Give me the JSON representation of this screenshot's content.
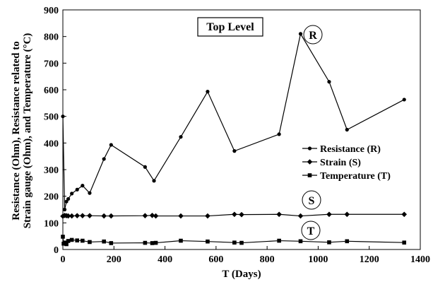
{
  "chart_data": {
    "type": "line",
    "xlabel": "T (Days)",
    "ylabel_lines": [
      "Resistance (Ohm), Resistance related to",
      "Strain gauge (Ohm), and Temperature  (°C)"
    ],
    "xlim": [
      0,
      1400
    ],
    "ylim": [
      0,
      900
    ],
    "xticks": [
      0,
      200,
      400,
      600,
      800,
      1000,
      1200,
      1400
    ],
    "yticks": [
      0,
      100,
      200,
      300,
      400,
      500,
      600,
      700,
      800,
      900
    ],
    "grid": false,
    "legend_position": "right-middle",
    "annotation_box": "Top Level",
    "series": [
      {
        "name": "Resistance (R)",
        "label": "R",
        "marker": "circle",
        "x": [
          0,
          7,
          14,
          21,
          35,
          56,
          77,
          105,
          161,
          189,
          322,
          357,
          462,
          567,
          672,
          847,
          931,
          1043,
          1113,
          1337
        ],
        "y": [
          500,
          150,
          180,
          190,
          210,
          225,
          240,
          212,
          340,
          393,
          310,
          258,
          423,
          593,
          370,
          433,
          810,
          630,
          450,
          563
        ]
      },
      {
        "name": "Strain (S)",
        "label": "S",
        "marker": "diamond",
        "x": [
          0,
          7,
          14,
          21,
          35,
          56,
          77,
          105,
          161,
          189,
          322,
          350,
          364,
          462,
          567,
          672,
          700,
          847,
          931,
          1043,
          1113,
          1337
        ],
        "y": [
          125,
          128,
          127,
          126,
          126,
          127,
          127,
          127,
          126,
          126,
          127,
          128,
          126,
          126,
          126,
          132,
          131,
          132,
          126,
          132,
          132,
          132
        ]
      },
      {
        "name": "Temperature (T)",
        "label": "T",
        "marker": "square",
        "x": [
          0,
          3,
          7,
          14,
          21,
          35,
          56,
          77,
          105,
          161,
          189,
          322,
          350,
          364,
          462,
          567,
          672,
          700,
          847,
          931,
          1043,
          1113,
          1337
        ],
        "y": [
          48,
          22,
          26,
          20,
          32,
          36,
          34,
          33,
          28,
          30,
          24,
          25,
          24,
          25,
          33,
          30,
          26,
          25,
          33,
          31,
          27,
          31,
          26
        ]
      }
    ]
  }
}
